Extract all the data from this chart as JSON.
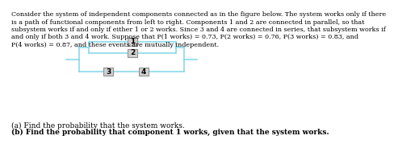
{
  "title_line1": "Consider the system of independent components connected as in the figure below. The system works only if there",
  "title_line2": "is a path of functional components from left to right. Components 1 and 2 are connected in parallel, so that",
  "title_line3": "subsystem works if and only if either 1 or 2 works. Since 3 and 4 are connected in series, that subsystem works if",
  "title_line4": "and only if both 3 and 4 work. Suppose that P(1 works) = 0.73, P(2 works) = 0.76, P(3 works) = 0.83, and",
  "title_line5": "P(4 works) = 0.87, and these events are mutually independent.",
  "question_a": "(a) Find the probability that the system works.",
  "question_b": "(b) Find the probability that component 1 works, given that the system works.",
  "diagram_color": "#7fd7e8",
  "box_face_color": "#d0d0d0",
  "box_edge_color": "#909090",
  "text_color": "#000000",
  "background_color": "#ffffff",
  "font_size_body": 5.8,
  "font_size_label": 6.5,
  "font_size_qa": 6.5,
  "font_size_qb": 6.5
}
